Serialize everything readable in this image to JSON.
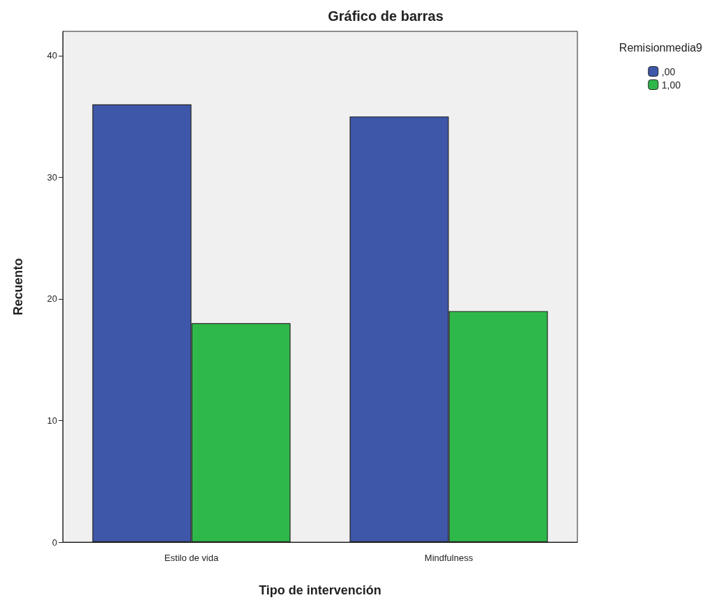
{
  "chart_data": {
    "type": "bar",
    "title": "Gráfico de barras",
    "xlabel": "Tipo de intervención",
    "ylabel": "Recuento",
    "legend_title": "Remisionmedia9",
    "categories": [
      "Estilo de vida",
      "Mindfulness"
    ],
    "series": [
      {
        "name": ",00",
        "color": "#3e57a8",
        "values": [
          36,
          35
        ]
      },
      {
        "name": "1,00",
        "color": "#2fb84a",
        "values": [
          18,
          19
        ]
      }
    ],
    "ylim": [
      0,
      42
    ],
    "yticks": [
      0,
      10,
      20,
      30,
      40
    ],
    "grid": false,
    "legend": "top right"
  }
}
